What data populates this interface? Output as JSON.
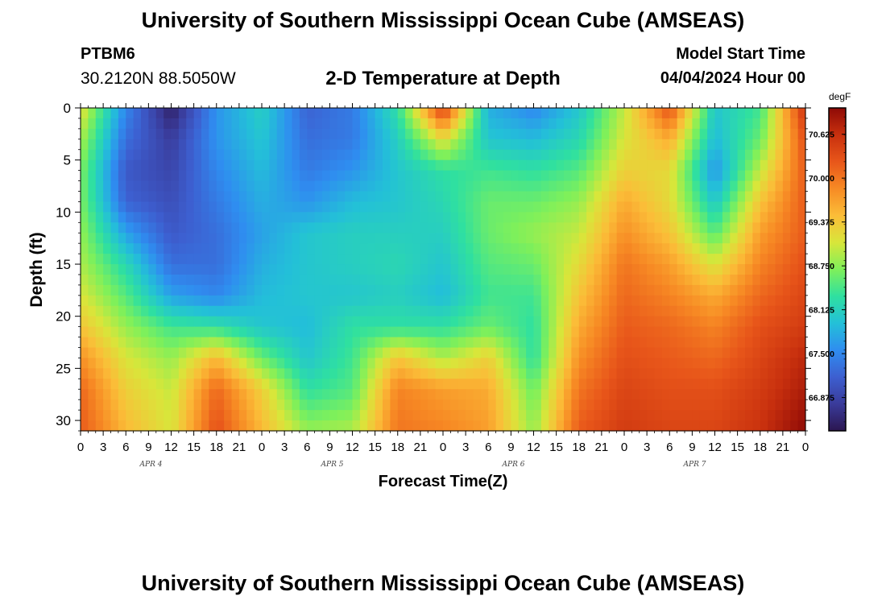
{
  "header": {
    "title": "University of Southern Mississippi Ocean Cube (AMSEAS)",
    "station": "PTBM6",
    "coordinates": "30.2120N  88.5050W",
    "subtitle": "2-D Temperature at Depth",
    "model_start_label": "Model Start Time",
    "model_start_value": "04/04/2024 Hour 00"
  },
  "footer": {
    "title": "University of Southern Mississippi Ocean Cube (AMSEAS)"
  },
  "chart_data": {
    "type": "heatmap",
    "title": "2-D Temperature at Depth",
    "xlabel": "Forecast Time(Z)",
    "ylabel": "Depth (ft)",
    "colorbar_unit": "degF",
    "x_tick_labels": [
      "0",
      "3",
      "6",
      "9",
      "12",
      "15",
      "18",
      "21",
      "0",
      "3",
      "6",
      "9",
      "12",
      "15",
      "18",
      "21",
      "0",
      "3",
      "6",
      "9",
      "12",
      "15",
      "18",
      "21",
      "0",
      "3",
      "6",
      "9",
      "12",
      "15",
      "18",
      "21",
      "0"
    ],
    "day_labels": [
      "APR 4",
      "APR 5",
      "APR 6",
      "APR 7"
    ],
    "y_ticks": [
      0,
      5,
      10,
      15,
      20,
      25,
      30
    ],
    "ylim": [
      0,
      31
    ],
    "xlim_hours": [
      0,
      96
    ],
    "color_range": [
      66.4,
      71.0
    ],
    "colorbar_ticks": [
      66.875,
      67.5,
      68.125,
      68.75,
      69.375,
      70.0,
      70.625
    ],
    "colorbar_tick_labels": [
      "66.875",
      "67.500",
      "68.125",
      "68.750",
      "69.375",
      "70.000",
      "70.625"
    ],
    "colormap": [
      "#2b1650",
      "#3a3b9a",
      "#3d5fd0",
      "#2f8df0",
      "#23c0d8",
      "#2fe0a0",
      "#7ff05a",
      "#d8e63a",
      "#fbbd38",
      "#f78a24",
      "#e8561a",
      "#c8300e",
      "#8e0a06"
    ],
    "depths": [
      0,
      3,
      6,
      9,
      12,
      15,
      18,
      21,
      24,
      27,
      31
    ],
    "hours": [
      0,
      6,
      12,
      18,
      24,
      30,
      36,
      42,
      48,
      54,
      60,
      66,
      72,
      78,
      84,
      90,
      96
    ],
    "temperature_degF": [
      [
        69.2,
        67.5,
        66.5,
        67.6,
        68.1,
        67.2,
        67.4,
        68.3,
        70.5,
        67.8,
        67.5,
        68.0,
        69.0,
        70.3,
        68.0,
        68.4,
        70.6
      ],
      [
        68.9,
        67.3,
        66.8,
        67.6,
        68.0,
        67.3,
        67.4,
        68.1,
        69.2,
        68.0,
        67.9,
        68.2,
        69.1,
        69.6,
        67.9,
        68.6,
        70.3
      ],
      [
        68.7,
        67.1,
        66.9,
        67.5,
        67.9,
        67.4,
        67.6,
        68.0,
        68.3,
        68.4,
        68.3,
        68.5,
        69.3,
        69.2,
        67.6,
        69.0,
        70.2
      ],
      [
        68.7,
        67.2,
        67.0,
        67.4,
        67.8,
        67.6,
        67.9,
        68.0,
        68.2,
        68.6,
        68.6,
        68.8,
        69.6,
        69.2,
        68.0,
        69.4,
        70.2
      ],
      [
        68.8,
        67.7,
        67.1,
        67.3,
        67.7,
        68.0,
        68.1,
        68.1,
        68.1,
        68.6,
        68.8,
        69.0,
        69.8,
        69.4,
        68.5,
        69.7,
        70.2
      ],
      [
        68.9,
        68.2,
        67.3,
        67.3,
        67.8,
        68.0,
        68.1,
        68.2,
        68.0,
        68.5,
        68.6,
        69.2,
        70.0,
        69.7,
        69.1,
        69.9,
        70.3
      ],
      [
        69.1,
        68.5,
        67.7,
        67.5,
        67.9,
        68.0,
        68.0,
        68.1,
        67.9,
        68.4,
        68.4,
        69.4,
        70.1,
        69.9,
        69.6,
        70.1,
        70.4
      ],
      [
        69.4,
        68.8,
        68.4,
        68.3,
        68.0,
        67.9,
        68.3,
        68.3,
        68.3,
        68.6,
        68.3,
        69.6,
        70.2,
        70.1,
        69.9,
        70.3,
        70.5
      ],
      [
        69.8,
        69.1,
        68.8,
        69.5,
        68.6,
        68.0,
        68.4,
        69.4,
        68.9,
        69.3,
        68.3,
        69.8,
        70.3,
        70.2,
        70.1,
        70.4,
        70.7
      ],
      [
        70.1,
        69.3,
        69.0,
        70.1,
        69.3,
        68.3,
        68.5,
        69.9,
        69.7,
        69.6,
        68.6,
        70.0,
        70.4,
        70.3,
        70.3,
        70.5,
        70.8
      ],
      [
        70.2,
        69.5,
        69.1,
        70.3,
        69.5,
        68.8,
        68.9,
        70.0,
        69.9,
        69.7,
        68.8,
        70.2,
        70.5,
        70.4,
        70.4,
        70.6,
        71.0
      ]
    ]
  }
}
